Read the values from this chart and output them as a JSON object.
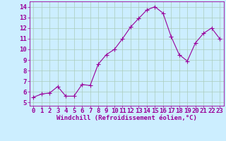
{
  "x": [
    0,
    1,
    2,
    3,
    4,
    5,
    6,
    7,
    8,
    9,
    10,
    11,
    12,
    13,
    14,
    15,
    16,
    17,
    18,
    19,
    20,
    21,
    22,
    23
  ],
  "y": [
    5.5,
    5.8,
    5.9,
    6.5,
    5.6,
    5.6,
    6.7,
    6.6,
    8.6,
    9.5,
    10.0,
    11.0,
    12.1,
    12.9,
    13.7,
    14.0,
    13.4,
    11.2,
    9.5,
    8.9,
    10.6,
    11.5,
    12.0,
    11.0
  ],
  "line_color": "#990099",
  "marker": "+",
  "marker_size": 4,
  "bg_color": "#cceeff",
  "grid_color": "#aaccbb",
  "xlabel": "Windchill (Refroidissement éolien,°C)",
  "ylabel_ticks": [
    5,
    6,
    7,
    8,
    9,
    10,
    11,
    12,
    13,
    14
  ],
  "xlabel_ticks": [
    0,
    1,
    2,
    3,
    4,
    5,
    6,
    7,
    8,
    9,
    10,
    11,
    12,
    13,
    14,
    15,
    16,
    17,
    18,
    19,
    20,
    21,
    22,
    23
  ],
  "xlim": [
    -0.5,
    23.5
  ],
  "ylim": [
    4.7,
    14.5
  ],
  "tick_label_color": "#990099",
  "xlabel_color": "#990099",
  "xlabel_fontsize": 6.5,
  "tick_fontsize": 6.5
}
